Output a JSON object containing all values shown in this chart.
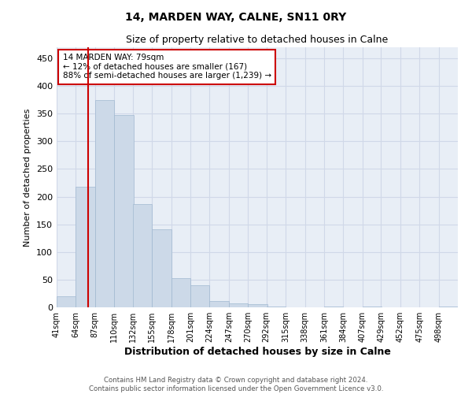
{
  "title": "14, MARDEN WAY, CALNE, SN11 0RY",
  "subtitle": "Size of property relative to detached houses in Calne",
  "xlabel": "Distribution of detached houses by size in Calne",
  "ylabel": "Number of detached properties",
  "footer_line1": "Contains HM Land Registry data © Crown copyright and database right 2024.",
  "footer_line2": "Contains public sector information licensed under the Open Government Licence v3.0.",
  "annotation_title": "14 MARDEN WAY: 79sqm",
  "annotation_line1": "← 12% of detached houses are smaller (167)",
  "annotation_line2": "88% of semi-detached houses are larger (1,239) →",
  "property_size_sqm": 79,
  "bar_color": "#ccd9e8",
  "bar_edge_color": "#a0b8d0",
  "vline_color": "#cc0000",
  "annotation_box_edge_color": "#cc0000",
  "grid_color": "#d0d8e8",
  "background_color": "#e8eef6",
  "bins": [
    41,
    64,
    87,
    110,
    132,
    155,
    178,
    201,
    224,
    247,
    270,
    292,
    315,
    338,
    361,
    384,
    407,
    429,
    452,
    475,
    498
  ],
  "bin_labels": [
    "41sqm",
    "64sqm",
    "87sqm",
    "110sqm",
    "132sqm",
    "155sqm",
    "178sqm",
    "201sqm",
    "224sqm",
    "247sqm",
    "270sqm",
    "292sqm",
    "315sqm",
    "338sqm",
    "361sqm",
    "384sqm",
    "407sqm",
    "429sqm",
    "452sqm",
    "475sqm",
    "498sqm"
  ],
  "values": [
    20,
    218,
    375,
    348,
    187,
    141,
    52,
    40,
    11,
    7,
    5,
    2,
    0,
    0,
    1,
    0,
    1,
    0,
    0,
    0,
    2
  ],
  "ylim": [
    0,
    470
  ],
  "yticks": [
    0,
    50,
    100,
    150,
    200,
    250,
    300,
    350,
    400,
    450
  ]
}
